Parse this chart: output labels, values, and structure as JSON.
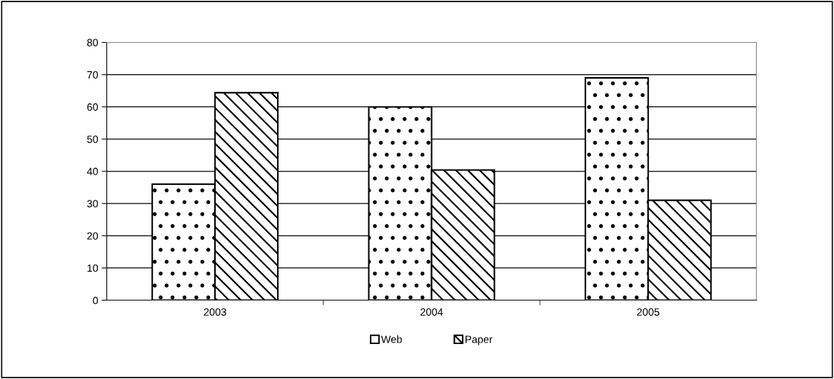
{
  "chart_data": {
    "type": "bar",
    "categories": [
      "2003",
      "2004",
      "2005"
    ],
    "series": [
      {
        "name": "Web",
        "color": "#ffffff",
        "values": [
          36,
          60,
          69
        ]
      },
      {
        "name": "Paper",
        "color": "#ffffff",
        "values": [
          64.4,
          40.4,
          31
        ]
      }
    ],
    "ylim": [
      0,
      80
    ],
    "yticks": [
      0,
      10,
      20,
      30,
      40,
      50,
      60,
      70,
      80
    ],
    "grid": "y",
    "legend": "bottom"
  }
}
